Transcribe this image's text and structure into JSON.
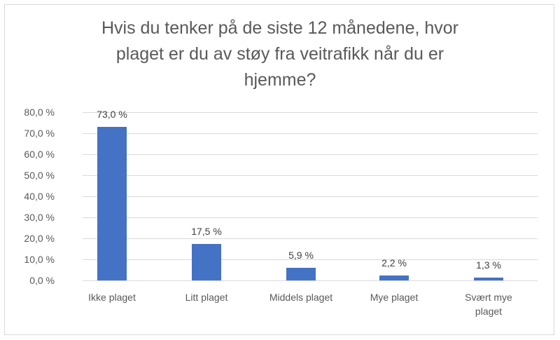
{
  "chart_data": {
    "type": "bar",
    "title": "Hvis du tenker på de siste 12 månedene, hvor plaget er du av støy fra veitrafikk når du er hjemme?",
    "title_lines": [
      "Hvis du tenker på de siste 12 månedene, hvor",
      "plaget er du av støy fra veitrafikk når du er",
      "hjemme?"
    ],
    "categories": [
      "Ikke plaget",
      "Litt plaget",
      "Middels plaget",
      "Mye plaget",
      "Svært mye plaget"
    ],
    "category_lines": [
      [
        "Ikke plaget"
      ],
      [
        "Litt plaget"
      ],
      [
        "Middels plaget"
      ],
      [
        "Mye plaget"
      ],
      [
        "Svært mye",
        "plaget"
      ]
    ],
    "values": [
      73.0,
      17.5,
      5.9,
      2.2,
      1.3
    ],
    "data_labels": [
      "73,0 %",
      "17,5 %",
      "5,9 %",
      "2,2 %",
      "1,3 %"
    ],
    "xlabel": "",
    "ylabel": "",
    "ylim": [
      0,
      80
    ],
    "yticks": [
      "80,0 %",
      "70,0 %",
      "60,0 %",
      "50,0 %",
      "40,0 %",
      "30,0 %",
      "20,0 %",
      "10,0 %",
      "0,0 %"
    ],
    "grid": true,
    "legend": "none",
    "bar_color": "#4472c4"
  }
}
